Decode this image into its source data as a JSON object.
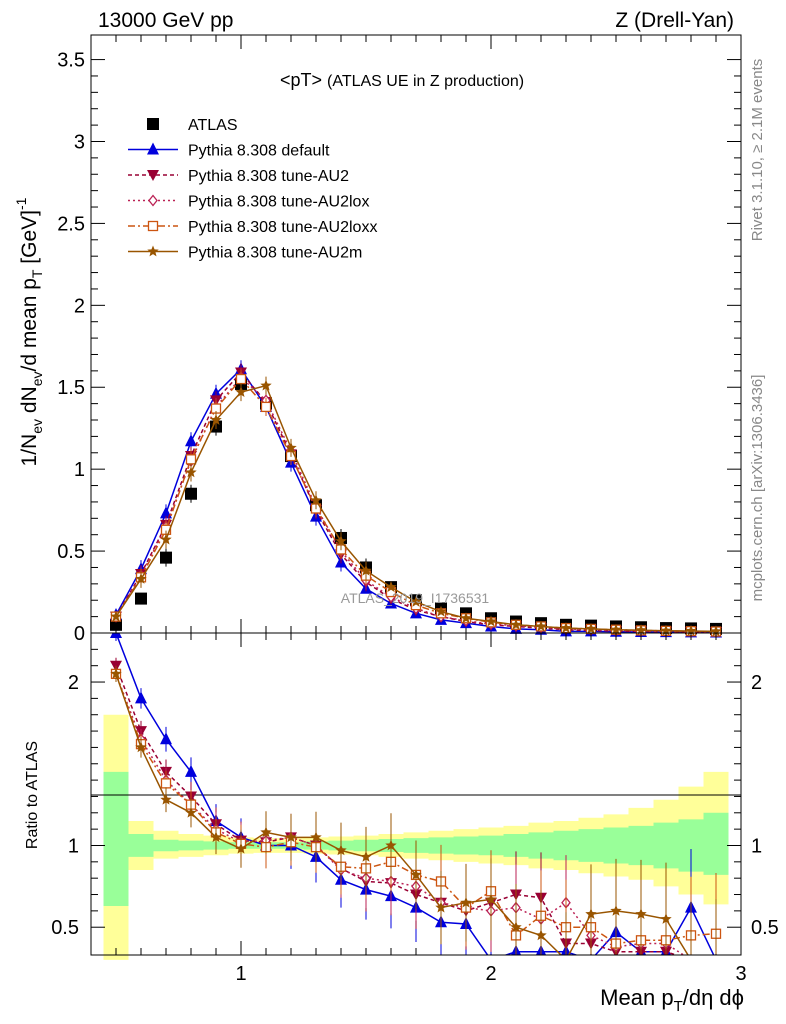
{
  "header": {
    "energy_label": "13000 GeV pp",
    "process_label": "Z (Drell-Yan)"
  },
  "chart_data": [
    {
      "type": "line",
      "panel": "main",
      "title": "<pT>",
      "title_detail": "(ATLAS UE in Z production)",
      "ylabel": "1/N_ev dN_ev/d mean p_T [GeV]^-1",
      "xlim": [
        0.4,
        3.0
      ],
      "ylim": [
        0,
        3.65
      ],
      "y_ticks": [
        0,
        0.5,
        1,
        1.5,
        2,
        2.5,
        3,
        3.5
      ],
      "y_tick_labels": [
        "0",
        "0.5",
        "1",
        "1.5",
        "2",
        "2.5",
        "3",
        "3.5"
      ],
      "x": [
        0.5,
        0.6,
        0.7,
        0.8,
        0.9,
        1.0,
        1.1,
        1.2,
        1.3,
        1.4,
        1.5,
        1.6,
        1.7,
        1.8,
        1.9,
        2.0,
        2.1,
        2.2,
        2.3,
        2.4,
        2.5,
        2.6,
        2.7,
        2.8,
        2.9
      ],
      "watermark": "ATLAS_2019_I1736531",
      "series": [
        {
          "name": "ATLAS",
          "color": "#000000",
          "marker": "square",
          "values": [
            0.05,
            0.21,
            0.46,
            0.85,
            1.26,
            1.52,
            1.4,
            1.08,
            0.78,
            0.58,
            0.4,
            0.28,
            0.2,
            0.15,
            0.12,
            0.09,
            0.07,
            0.06,
            0.05,
            0.045,
            0.04,
            0.035,
            0.03,
            0.028,
            0.025
          ]
        },
        {
          "name": "Pythia 8.308 default",
          "color": "#0000dd",
          "marker": "triangle-up",
          "dash": "",
          "values": [
            0.11,
            0.39,
            0.73,
            1.17,
            1.46,
            1.61,
            1.38,
            1.04,
            0.71,
            0.43,
            0.27,
            0.18,
            0.12,
            0.08,
            0.06,
            0.04,
            0.025,
            0.02,
            0.01,
            0.01,
            0.008,
            0.006,
            0.005,
            0.004,
            0.003
          ]
        },
        {
          "name": "Pythia 8.308 tune-AU2",
          "color": "#990033",
          "marker": "triangle-down",
          "dash": "4,3",
          "values": [
            0.1,
            0.36,
            0.66,
            1.08,
            1.42,
            1.59,
            1.41,
            1.09,
            0.75,
            0.48,
            0.31,
            0.21,
            0.14,
            0.1,
            0.07,
            0.05,
            0.04,
            0.03,
            0.02,
            0.015,
            0.012,
            0.01,
            0.008,
            0.007,
            0.006
          ]
        },
        {
          "name": "Pythia 8.308 tune-AU2lox",
          "color": "#bb2255",
          "marker": "diamond-open",
          "dash": "2,3",
          "values": [
            0.1,
            0.35,
            0.65,
            1.05,
            1.38,
            1.56,
            1.42,
            1.11,
            0.77,
            0.5,
            0.32,
            0.22,
            0.15,
            0.1,
            0.075,
            0.055,
            0.045,
            0.035,
            0.025,
            0.02,
            0.015,
            0.012,
            0.01,
            0.008,
            0.007
          ]
        },
        {
          "name": "Pythia 8.308 tune-AU2loxx",
          "color": "#cc5511",
          "marker": "square-open",
          "dash": "7,3,2,3",
          "values": [
            0.1,
            0.34,
            0.63,
            1.06,
            1.37,
            1.55,
            1.38,
            1.08,
            0.76,
            0.51,
            0.35,
            0.25,
            0.17,
            0.12,
            0.09,
            0.065,
            0.05,
            0.04,
            0.03,
            0.025,
            0.02,
            0.016,
            0.013,
            0.011,
            0.009
          ]
        },
        {
          "name": "Pythia 8.308 tune-AU2m",
          "color": "#995500",
          "marker": "star",
          "dash": "",
          "values": [
            0.1,
            0.33,
            0.57,
            0.98,
            1.3,
            1.47,
            1.51,
            1.13,
            0.81,
            0.56,
            0.38,
            0.28,
            0.19,
            0.13,
            0.09,
            0.07,
            0.05,
            0.04,
            0.03,
            0.025,
            0.02,
            0.017,
            0.014,
            0.012,
            0.01
          ]
        }
      ]
    },
    {
      "type": "line",
      "panel": "ratio",
      "ylabel": "Ratio to ATLAS",
      "xlabel": "Mean p_T/dη dϕ",
      "xlim": [
        0.4,
        3.0
      ],
      "ylim": [
        0.33,
        2.3
      ],
      "x_ticks": [
        1,
        2,
        3
      ],
      "x_tick_labels": [
        "1",
        "2",
        "3"
      ],
      "y_ticks": [
        0.5,
        1,
        2
      ],
      "y_tick_labels": [
        "0.5",
        "1",
        "2"
      ],
      "x": [
        0.5,
        0.6,
        0.7,
        0.8,
        0.9,
        1.0,
        1.1,
        1.2,
        1.3,
        1.4,
        1.5,
        1.6,
        1.7,
        1.8,
        1.9,
        2.0,
        2.1,
        2.2,
        2.3,
        2.4,
        2.5,
        2.6,
        2.7,
        2.8,
        2.9
      ],
      "bands": {
        "yellow_low": [
          0.3,
          0.85,
          0.92,
          0.93,
          0.94,
          0.95,
          0.955,
          0.955,
          0.95,
          0.945,
          0.94,
          0.93,
          0.92,
          0.91,
          0.9,
          0.89,
          0.88,
          0.86,
          0.85,
          0.83,
          0.81,
          0.79,
          0.75,
          0.7,
          0.64
        ],
        "yellow_high": [
          1.8,
          1.15,
          1.09,
          1.07,
          1.06,
          1.05,
          1.045,
          1.045,
          1.05,
          1.055,
          1.06,
          1.07,
          1.08,
          1.09,
          1.1,
          1.11,
          1.12,
          1.14,
          1.15,
          1.17,
          1.19,
          1.23,
          1.28,
          1.36,
          1.45
        ],
        "green_low": [
          0.63,
          0.93,
          0.965,
          0.97,
          0.975,
          0.98,
          0.98,
          0.98,
          0.975,
          0.97,
          0.965,
          0.96,
          0.955,
          0.95,
          0.945,
          0.94,
          0.93,
          0.92,
          0.91,
          0.9,
          0.89,
          0.88,
          0.86,
          0.84,
          0.82
        ],
        "green_high": [
          1.45,
          1.07,
          1.035,
          1.03,
          1.025,
          1.02,
          1.02,
          1.02,
          1.025,
          1.03,
          1.035,
          1.04,
          1.045,
          1.05,
          1.055,
          1.06,
          1.07,
          1.08,
          1.09,
          1.1,
          1.11,
          1.12,
          1.14,
          1.16,
          1.2
        ]
      },
      "series": [
        {
          "name": "Pythia 8.308 default",
          "color": "#0000dd",
          "values": [
            2.3,
            1.9,
            1.65,
            1.45,
            1.15,
            1.05,
            1.0,
            1.0,
            0.93,
            0.79,
            0.73,
            0.69,
            0.62,
            0.53,
            0.52,
            0.3,
            0.35,
            0.35,
            0.35,
            0.3,
            0.47,
            0.35,
            0.35,
            0.62,
            0.3
          ]
        },
        {
          "name": "Pythia 8.308 tune-AU2",
          "color": "#990033",
          "values": [
            2.1,
            1.7,
            1.45,
            1.3,
            1.13,
            1.03,
            1.02,
            1.05,
            1.0,
            0.86,
            0.78,
            0.77,
            0.7,
            0.65,
            0.6,
            0.65,
            0.7,
            0.68,
            0.4,
            0.4,
            0.35,
            0.35,
            0.35,
            0.3,
            0.3
          ]
        },
        {
          "name": "Pythia 8.308 tune-AU2lox",
          "color": "#bb2255",
          "values": [
            2.05,
            1.65,
            1.4,
            1.25,
            1.1,
            1.02,
            1.03,
            1.05,
            1.0,
            0.85,
            0.8,
            0.78,
            0.75,
            0.65,
            0.62,
            0.6,
            0.62,
            0.55,
            0.65,
            0.45,
            0.38,
            0.4,
            0.4,
            0.3,
            0.3
          ]
        },
        {
          "name": "Pythia 8.308 tune-AU2loxx",
          "color": "#cc5511",
          "values": [
            2.05,
            1.62,
            1.38,
            1.25,
            1.08,
            1.01,
            0.99,
            1.02,
            0.99,
            0.87,
            0.86,
            0.9,
            0.82,
            0.78,
            0.62,
            0.72,
            0.45,
            0.57,
            0.5,
            0.5,
            0.4,
            0.42,
            0.42,
            0.45,
            0.46
          ]
        },
        {
          "name": "Pythia 8.308 tune-AU2m",
          "color": "#995500",
          "values": [
            2.05,
            1.6,
            1.28,
            1.2,
            1.05,
            0.98,
            1.08,
            1.05,
            1.05,
            0.97,
            0.93,
            1.0,
            0.82,
            0.62,
            0.65,
            0.67,
            0.5,
            0.45,
            0.3,
            0.58,
            0.6,
            0.58,
            0.55,
            0.3,
            0.3
          ]
        }
      ]
    }
  ],
  "side_labels": {
    "rivet": "Rivet 3.1.10, ≥ 2.1M events",
    "mcplots": "mcplots.cern.ch [arXiv:1306.3436]"
  }
}
